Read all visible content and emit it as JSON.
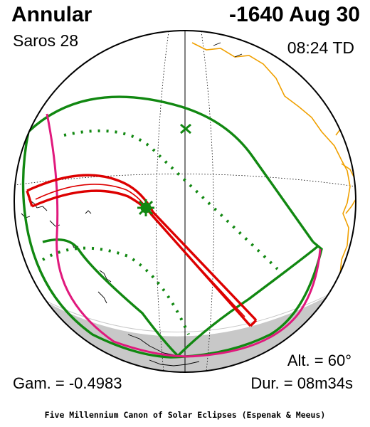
{
  "header": {
    "eclipse_type": "Annular",
    "saros": "Saros  28",
    "date": "-1640 Aug 30",
    "time": "08:24 TD"
  },
  "stats": {
    "altitude": "Alt. = 60°",
    "gamma": "Gam. = -0.4983",
    "duration": "Dur. = 08m34s"
  },
  "footer": {
    "credit": "Five Millennium Canon of Solar Eclipses (Espenak & Meeus)"
  },
  "colors": {
    "central_path": "#dd0000",
    "penumbra_limits": "#118811",
    "rise_set_curve": "#e0197d",
    "coastlines": "#f0a000",
    "night_shading": "#c8c8c8"
  },
  "markers": {
    "greatest_eclipse": "star-icon",
    "sub_solar_point": "cross-icon"
  }
}
